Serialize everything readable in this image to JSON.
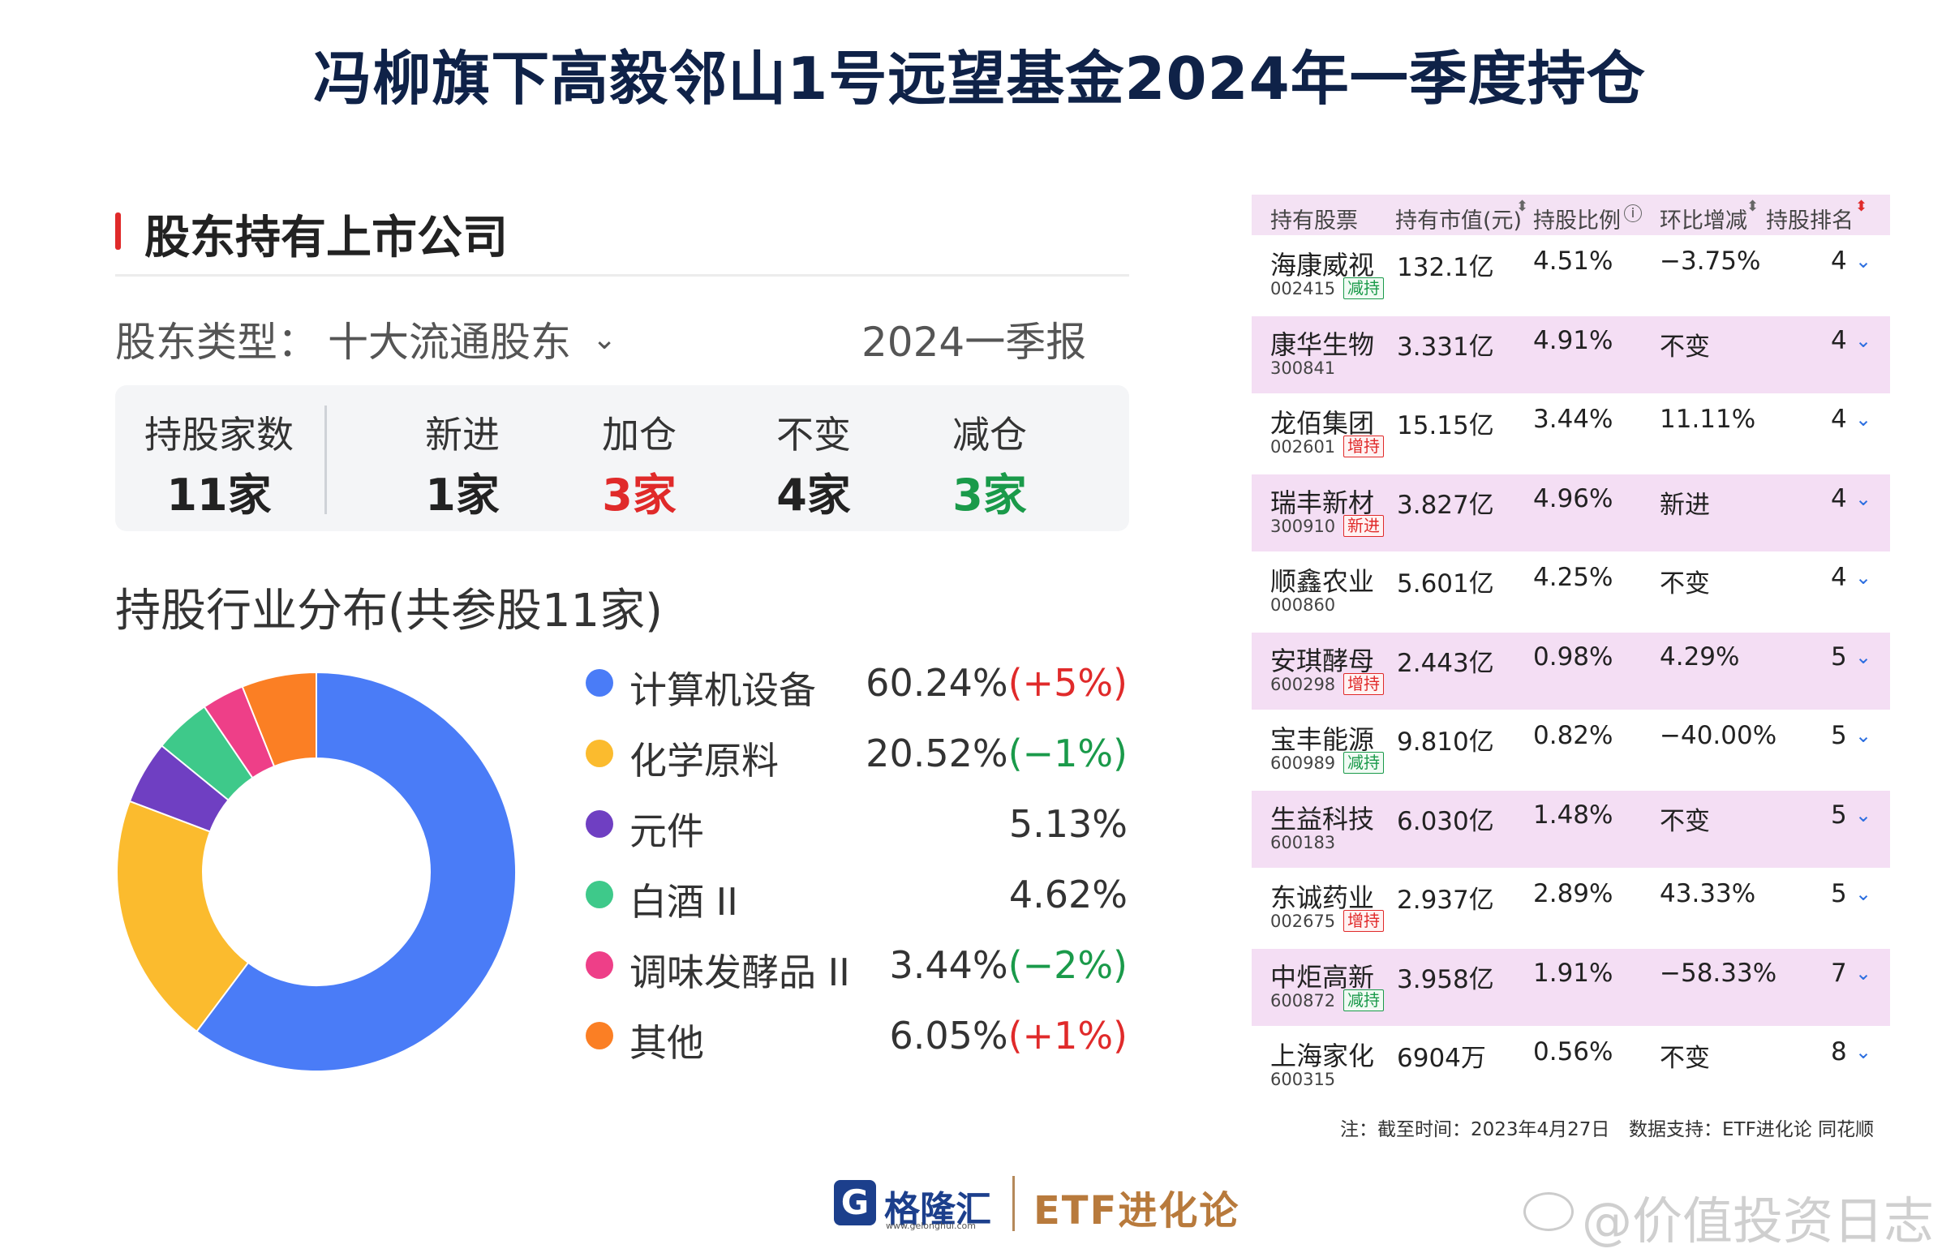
{
  "title": "冯柳旗下高毅邻山1号远望基金2024年一季度持仓",
  "section_title": "股东持有上市公司",
  "filter": {
    "label": "股东类型：",
    "value": "十大流通股东",
    "report": "2024一季报"
  },
  "stats": [
    {
      "label": "持股家数",
      "value": "11家"
    },
    {
      "label": "新进",
      "value": "1家"
    },
    {
      "label": "加仓",
      "value": "3家"
    },
    {
      "label": "不变",
      "value": "4家"
    },
    {
      "label": "减仓",
      "value": "3家"
    }
  ],
  "dist_title": "持股行业分布(共参股11家)",
  "legend": [
    {
      "name": "计算机设备",
      "pct": "60.24%",
      "change": "(+5%)"
    },
    {
      "name": "化学原料",
      "pct": "20.52%",
      "change": "(−1%)"
    },
    {
      "name": "元件",
      "pct": "5.13%",
      "change": ""
    },
    {
      "name": "白酒 II",
      "pct": "4.62%",
      "change": ""
    },
    {
      "name": "调味发酵品 II",
      "pct": "3.44%",
      "change": "(−2%)"
    },
    {
      "name": "其他",
      "pct": "6.05%",
      "change": "(+1%)"
    }
  ],
  "chart_data": {
    "type": "pie",
    "donut": true,
    "title": "持股行业分布(共参股11家)",
    "series": [
      {
        "labels": [
          "计算机设备",
          "化学原料",
          "元件",
          "白酒 II",
          "调味发酵品 II",
          "其他"
        ],
        "values": [
          60.24,
          20.52,
          5.13,
          4.62,
          3.44,
          6.05
        ],
        "changes": [
          "+5%",
          "−1%",
          "",
          "",
          "−2%",
          "+1%"
        ],
        "colors": [
          "#4a7cf7",
          "#fbbb2e",
          "#6f3fc2",
          "#3ec98a",
          "#ee3f88",
          "#fb7f24"
        ]
      }
    ],
    "legend_position": "right"
  },
  "table": {
    "headers": [
      "持有股票",
      "持有市值(元)",
      "持股比例",
      "环比增减",
      "持股排名"
    ],
    "rows": [
      {
        "name": "海康威视",
        "code": "002415",
        "tag": "减持",
        "tag_type": "dec",
        "value": "132.1亿",
        "ratio": "4.51%",
        "change": "−3.75%",
        "rank": "4"
      },
      {
        "name": "康华生物",
        "code": "300841",
        "tag": "",
        "tag_type": "",
        "value": "3.331亿",
        "ratio": "4.91%",
        "change": "不变",
        "rank": "4"
      },
      {
        "name": "龙佰集团",
        "code": "002601",
        "tag": "增持",
        "tag_type": "inc",
        "value": "15.15亿",
        "ratio": "3.44%",
        "change": "11.11%",
        "rank": "4"
      },
      {
        "name": "瑞丰新材",
        "code": "300910",
        "tag": "新进",
        "tag_type": "new",
        "value": "3.827亿",
        "ratio": "4.96%",
        "change": "新进",
        "rank": "4"
      },
      {
        "name": "顺鑫农业",
        "code": "000860",
        "tag": "",
        "tag_type": "",
        "value": "5.601亿",
        "ratio": "4.25%",
        "change": "不变",
        "rank": "4"
      },
      {
        "name": "安琪酵母",
        "code": "600298",
        "tag": "增持",
        "tag_type": "inc",
        "value": "2.443亿",
        "ratio": "0.98%",
        "change": "4.29%",
        "rank": "5"
      },
      {
        "name": "宝丰能源",
        "code": "600989",
        "tag": "减持",
        "tag_type": "dec",
        "value": "9.810亿",
        "ratio": "0.82%",
        "change": "−40.00%",
        "rank": "5"
      },
      {
        "name": "生益科技",
        "code": "600183",
        "tag": "",
        "tag_type": "",
        "value": "6.030亿",
        "ratio": "1.48%",
        "change": "不变",
        "rank": "5"
      },
      {
        "name": "东诚药业",
        "code": "002675",
        "tag": "增持",
        "tag_type": "inc",
        "value": "2.937亿",
        "ratio": "2.89%",
        "change": "43.33%",
        "rank": "5"
      },
      {
        "name": "中炬高新",
        "code": "600872",
        "tag": "减持",
        "tag_type": "dec",
        "value": "3.958亿",
        "ratio": "1.91%",
        "change": "−58.33%",
        "rank": "7"
      },
      {
        "name": "上海家化",
        "code": "600315",
        "tag": "",
        "tag_type": "",
        "value": "6904万",
        "ratio": "0.56%",
        "change": "不变",
        "rank": "8"
      }
    ]
  },
  "note": "注：截至时间：2023年4月27日",
  "note_source": "数据支持：ETF进化论 同花顺",
  "logo": {
    "mark": "G",
    "text": "格隆汇",
    "url": "www.gelonghui.com",
    "partner": "ETF进化论"
  },
  "watermark": "@价值投资日志",
  "colors": {
    "up": "#e02a2a",
    "down": "#1a9a4a",
    "accent_bar": "#e02a2a"
  }
}
